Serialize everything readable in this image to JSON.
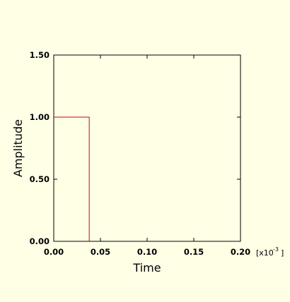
{
  "colors": {
    "background": "#ffffe6",
    "series_line": "#cc0000",
    "axes": "#000000"
  },
  "chart_data": {
    "type": "line",
    "title": "",
    "xlabel": "Time",
    "ylabel": "Amplitude",
    "x_scale_factor": "[x10",
    "x_scale_exponent": "-3",
    "x_scale_close": "]",
    "xlim": [
      0,
      0.2
    ],
    "ylim": [
      0,
      1.5
    ],
    "xticks": [
      0.0,
      0.05,
      0.1,
      0.15,
      0.2
    ],
    "xtick_labels": [
      "0.00",
      "0.05",
      "0.10",
      "0.15",
      "0.20"
    ],
    "yticks": [
      0.0,
      0.5,
      1.0,
      1.5
    ],
    "ytick_labels": [
      "0.00",
      "0.50",
      "1.00",
      "1.50"
    ],
    "grid": false,
    "legend": "none",
    "series": [
      {
        "x": [
          0.0,
          0.038,
          0.038
        ],
        "y": [
          1.0,
          1.0,
          0.0
        ]
      }
    ]
  }
}
